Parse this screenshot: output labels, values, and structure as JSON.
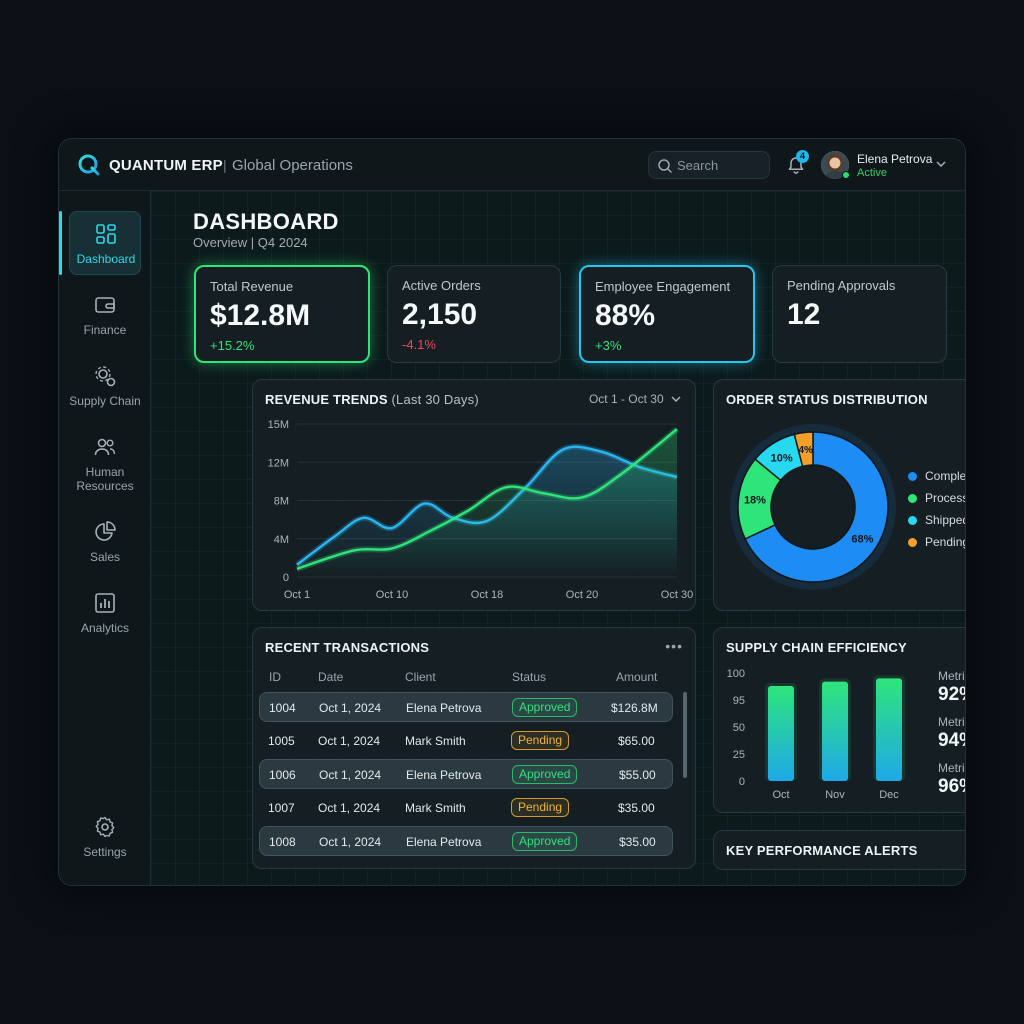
{
  "app": {
    "name": "QUANTUM ERP",
    "separator": "|",
    "subtitle": "Global Operations"
  },
  "header": {
    "search_placeholder": "Search",
    "notification_count": "4",
    "user_name": "Elena Petrova",
    "user_status": "Active"
  },
  "sidebar": {
    "items": [
      {
        "label": "Dashboard",
        "icon": "dashboard-icon"
      },
      {
        "label": "Finance",
        "icon": "wallet-icon"
      },
      {
        "label": "Supply Chain",
        "icon": "supply-chain-icon"
      },
      {
        "label": "Human",
        "label2": "Resources",
        "icon": "people-icon"
      },
      {
        "label": "Sales",
        "icon": "pie-icon"
      },
      {
        "label": "Analytics",
        "icon": "bar-chart-icon"
      }
    ],
    "settings_label": "Settings"
  },
  "page": {
    "title": "DASHBOARD",
    "subtitle": "Overview | Q4 2024"
  },
  "kpis": [
    {
      "label": "Total Revenue",
      "value": "$12.8M",
      "delta": "+15.2%",
      "delta_color": "#35e07d"
    },
    {
      "label": "Active Orders",
      "value": "2,150",
      "delta": "-4.1%",
      "delta_color": "#f0465a"
    },
    {
      "label": "Employee Engagement",
      "value": "88%",
      "delta": "+3%",
      "delta_color": "#35e07d"
    },
    {
      "label": "Pending Approvals",
      "value": "12"
    }
  ],
  "revenue": {
    "title": "REVENUE TRENDS",
    "title_suffix": "(Last 30 Days)",
    "range": "Oct 1 - Oct 30",
    "chart_data": {
      "type": "line",
      "x": [
        "Oct 1",
        "Oct 10",
        "Oct 18",
        "Oct 20",
        "Oct 30"
      ],
      "yticks": [
        "15M",
        "12M",
        "8M",
        "4M",
        "0"
      ],
      "ylim": [
        0,
        15
      ],
      "series": [
        {
          "color": "#2ab6f2",
          "x": [
            0,
            2,
            3.5,
            5,
            6.7,
            8.2,
            10,
            12,
            14,
            16,
            18,
            20
          ],
          "values": [
            1.2,
            4,
            5.8,
            4.8,
            7.2,
            5.8,
            5.5,
            8.7,
            12.5,
            12.3,
            10.8,
            9.8
          ]
        },
        {
          "color": "#2ee57a",
          "x": [
            0,
            3,
            5,
            7,
            9,
            11,
            13,
            15,
            17,
            20
          ],
          "values": [
            0.8,
            2.6,
            2.8,
            4.5,
            6.5,
            8.8,
            8.2,
            7.8,
            10,
            14.5
          ]
        }
      ],
      "grid": true
    }
  },
  "orders": {
    "title": "ORDER STATUS DISTRIBUTION",
    "chart_data": {
      "type": "pie",
      "categories": [
        "Completed",
        "Processing",
        "Shipped",
        "Pending"
      ],
      "values": [
        68,
        18,
        10,
        4
      ],
      "labels": [
        "68%",
        "18%",
        "10%",
        "4%"
      ],
      "colors": [
        "#1e8cf5",
        "#2ee57a",
        "#27d9ef",
        "#f3a02a"
      ],
      "legend": "right"
    }
  },
  "transactions": {
    "title": "RECENT TRANSACTIONS",
    "columns": [
      "ID",
      "Date",
      "Client",
      "Status",
      "Amount"
    ],
    "rows": [
      {
        "id": "1004",
        "date": "Oct 1, 2024",
        "client": "Elena Petrova",
        "status": "Approved",
        "amount": "$126.8M"
      },
      {
        "id": "1005",
        "date": "Oct 1, 2024",
        "client": "Mark Smith",
        "status": "Pending",
        "amount": "$65.00"
      },
      {
        "id": "1006",
        "date": "Oct 1, 2024",
        "client": "Elena Petrova",
        "status": "Approved",
        "amount": "$55.00"
      },
      {
        "id": "1007",
        "date": "Oct 1, 2024",
        "client": "Mark Smith",
        "status": "Pending",
        "amount": "$35.00"
      },
      {
        "id": "1008",
        "date": "Oct 1, 2024",
        "client": "Elena Petrova",
        "status": "Approved",
        "amount": "$35.00"
      }
    ]
  },
  "supply": {
    "title": "SUPPLY CHAIN EFFICIENCY",
    "chart_data": {
      "type": "bar",
      "categories": [
        "Oct",
        "Nov",
        "Dec"
      ],
      "values": [
        88,
        92,
        95
      ],
      "yticks": [
        "100",
        "95",
        "50",
        "25",
        "0"
      ],
      "ylim": [
        0,
        100
      ]
    },
    "metrics": [
      {
        "label": "Metrics",
        "value": "92%"
      },
      {
        "label": "Metrics",
        "value": "94%"
      },
      {
        "label": "Metrics",
        "value": "96%"
      }
    ]
  },
  "alerts": {
    "title": "KEY PERFORMANCE ALERTS"
  }
}
